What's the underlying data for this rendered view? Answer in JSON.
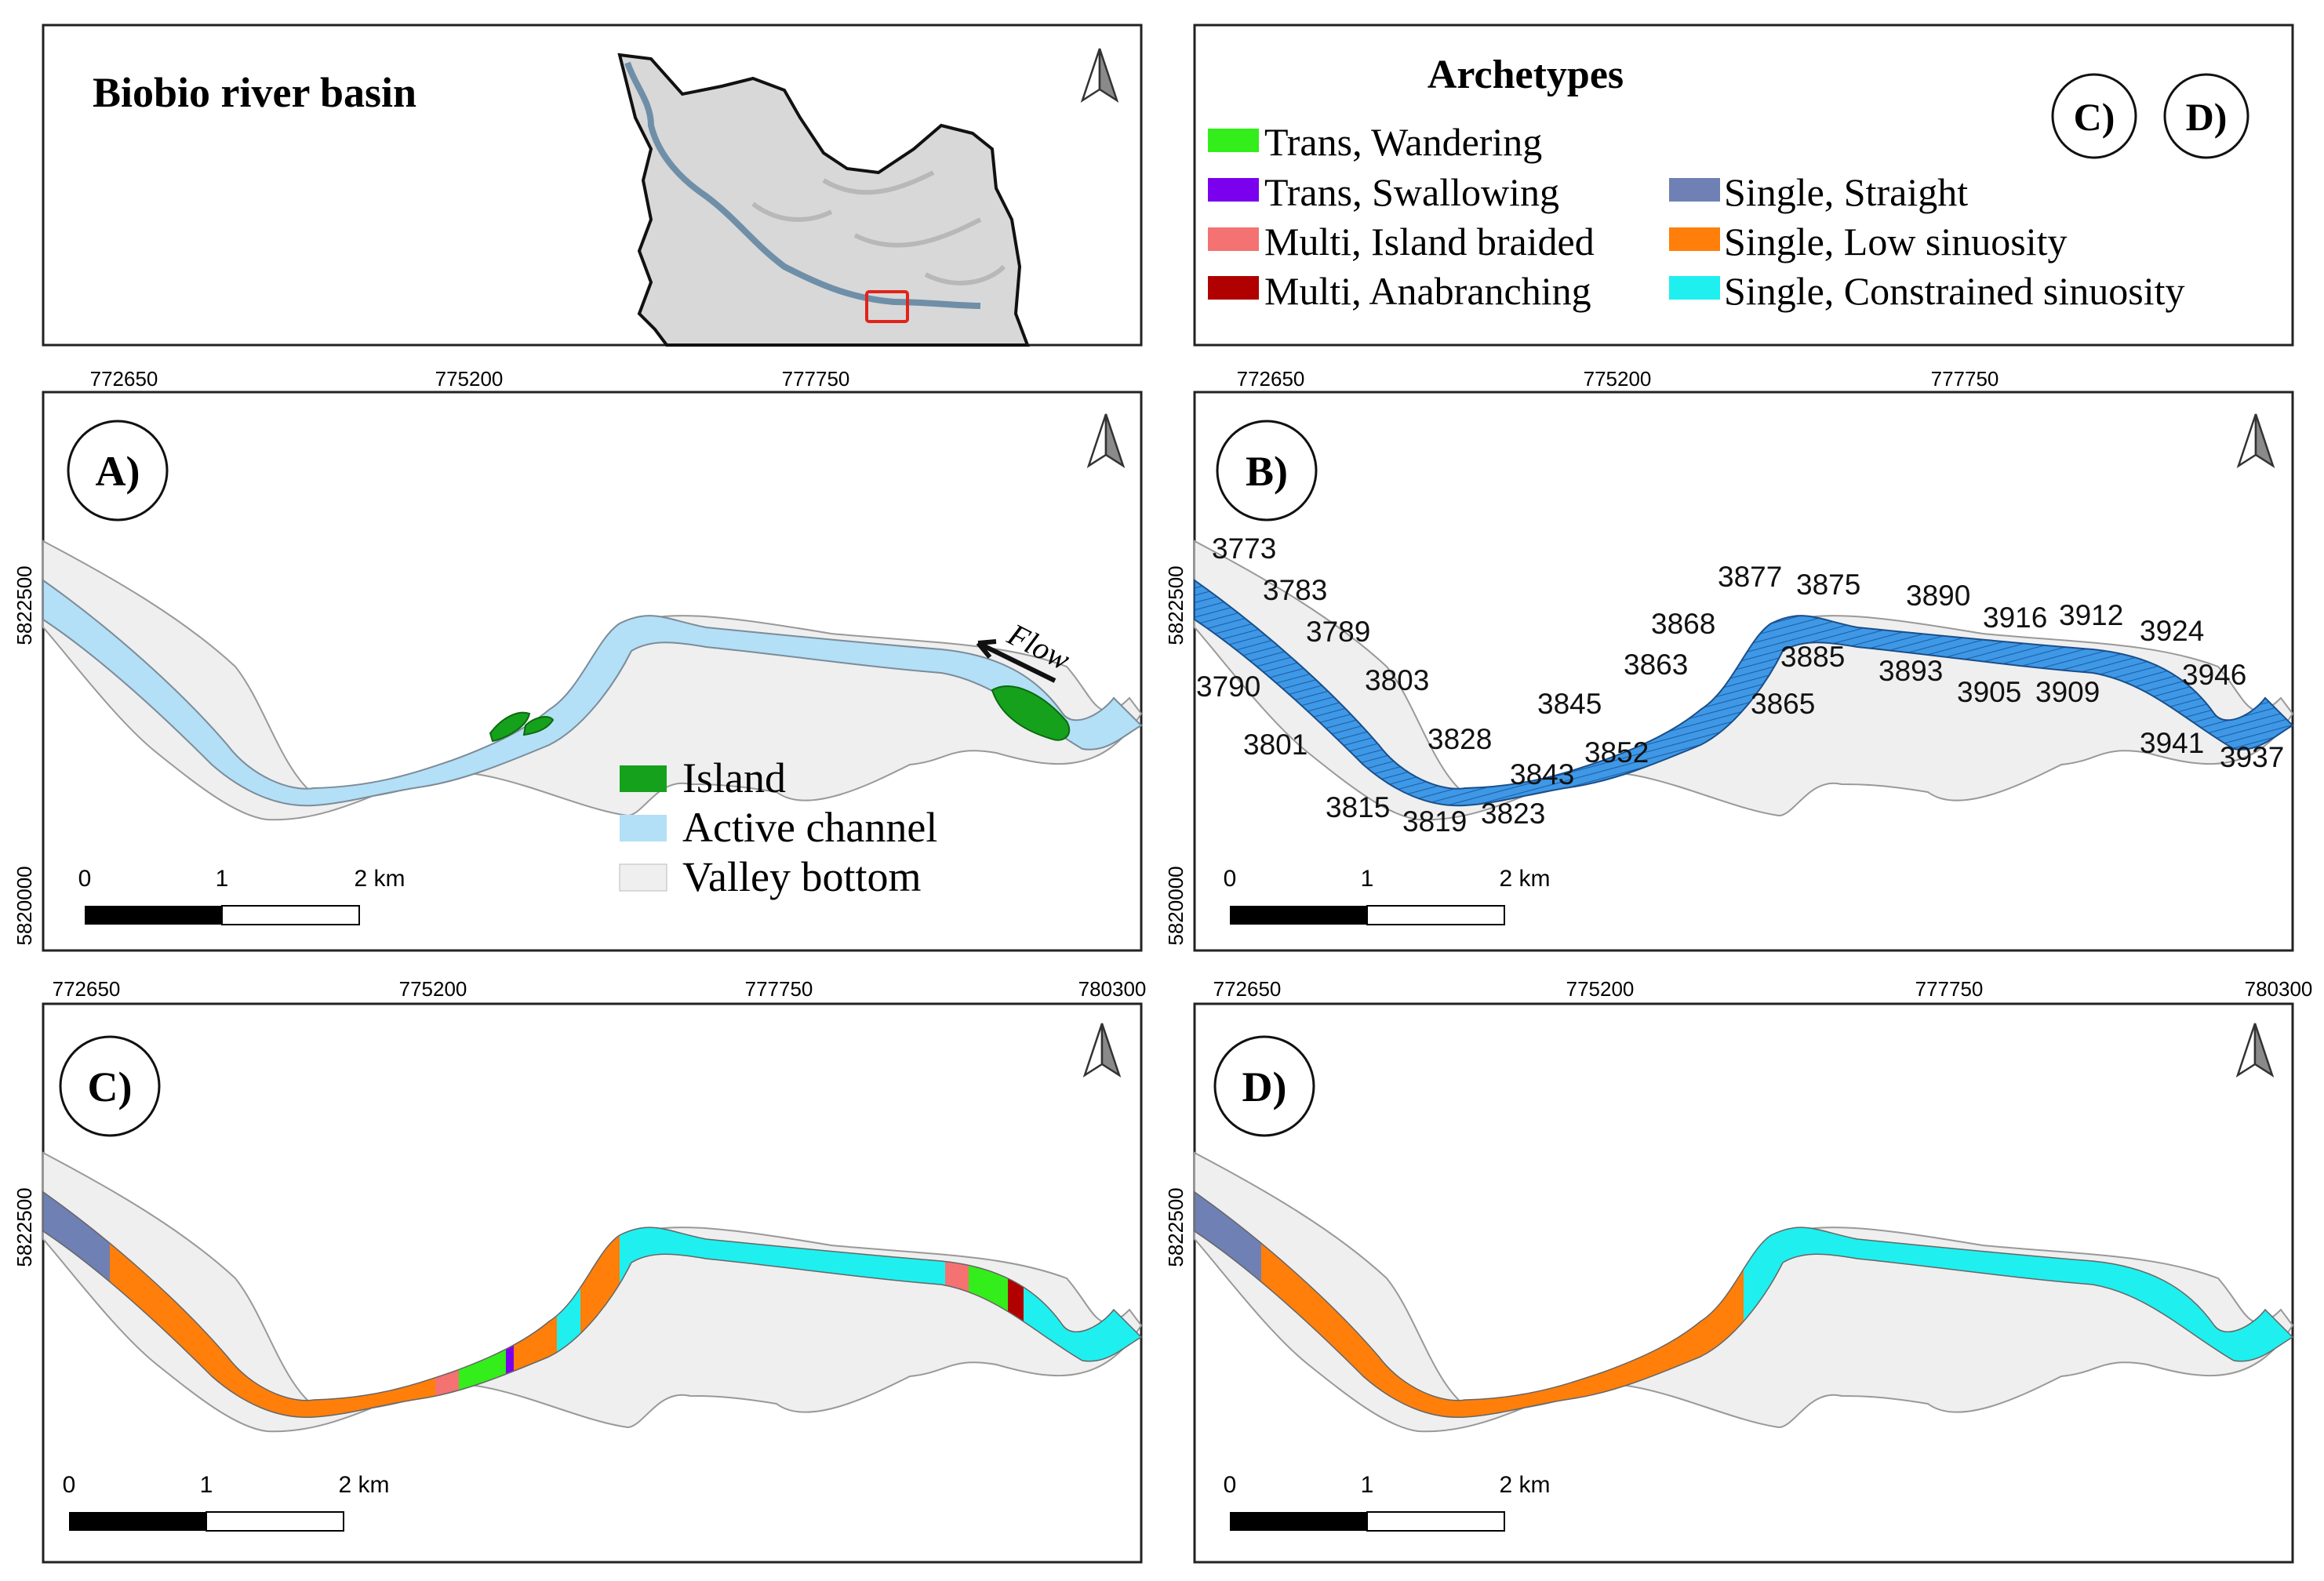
{
  "overview": {
    "title": "Biobio river basin"
  },
  "legend": {
    "title": "Archetypes",
    "panel_refs": [
      "C)",
      "D)"
    ],
    "items": [
      {
        "label": "Trans, Wandering",
        "color": "#33ee1a"
      },
      {
        "label": "Trans, Swallowing",
        "color": "#7a00ee"
      },
      {
        "label": "Multi, Island braided",
        "color": "#f47272"
      },
      {
        "label": "Multi, Anabranching",
        "color": "#b00000"
      },
      {
        "label": "Single, Straight",
        "color": "#6f80b5"
      },
      {
        "label": "Single, Low sinuosity",
        "color": "#ff7f0a"
      },
      {
        "label": "Single, Constrained sinuosity",
        "color": "#1fefef"
      }
    ]
  },
  "axes": {
    "x_top": [
      "772650",
      "775200",
      "777750"
    ],
    "x_mid": [
      "772650",
      "775200",
      "777750",
      "780300"
    ],
    "y_top": [
      "5822500",
      "5820000"
    ],
    "y_bottom": [
      "5822500"
    ]
  },
  "panels": {
    "a": {
      "label": "A)",
      "flow": "Flow",
      "legend": [
        {
          "label": "Island",
          "color": "#16a11c"
        },
        {
          "label": "Active channel",
          "color": "#b3dff7"
        },
        {
          "label": "Valley bottom",
          "color": "#efefef"
        }
      ]
    },
    "b": {
      "label": "B)",
      "segment_ids": [
        "3773",
        "3783",
        "3789",
        "3790",
        "3803",
        "3801",
        "3828",
        "3815",
        "3819",
        "3823",
        "3845",
        "3843",
        "3852",
        "3863",
        "3868",
        "3865",
        "3877",
        "3875",
        "3885",
        "3890",
        "3893",
        "3905",
        "3909",
        "3916",
        "3912",
        "3924",
        "3946",
        "3941",
        "3937"
      ]
    },
    "c": {
      "label": "C)"
    },
    "d": {
      "label": "D)"
    }
  },
  "scalebar": {
    "ticks": [
      "0",
      "1",
      "2 km"
    ]
  },
  "colors": {
    "valley": "#efefef",
    "channel": "#b3dff7",
    "segments": "#3f98e6",
    "frame": "#222222"
  }
}
